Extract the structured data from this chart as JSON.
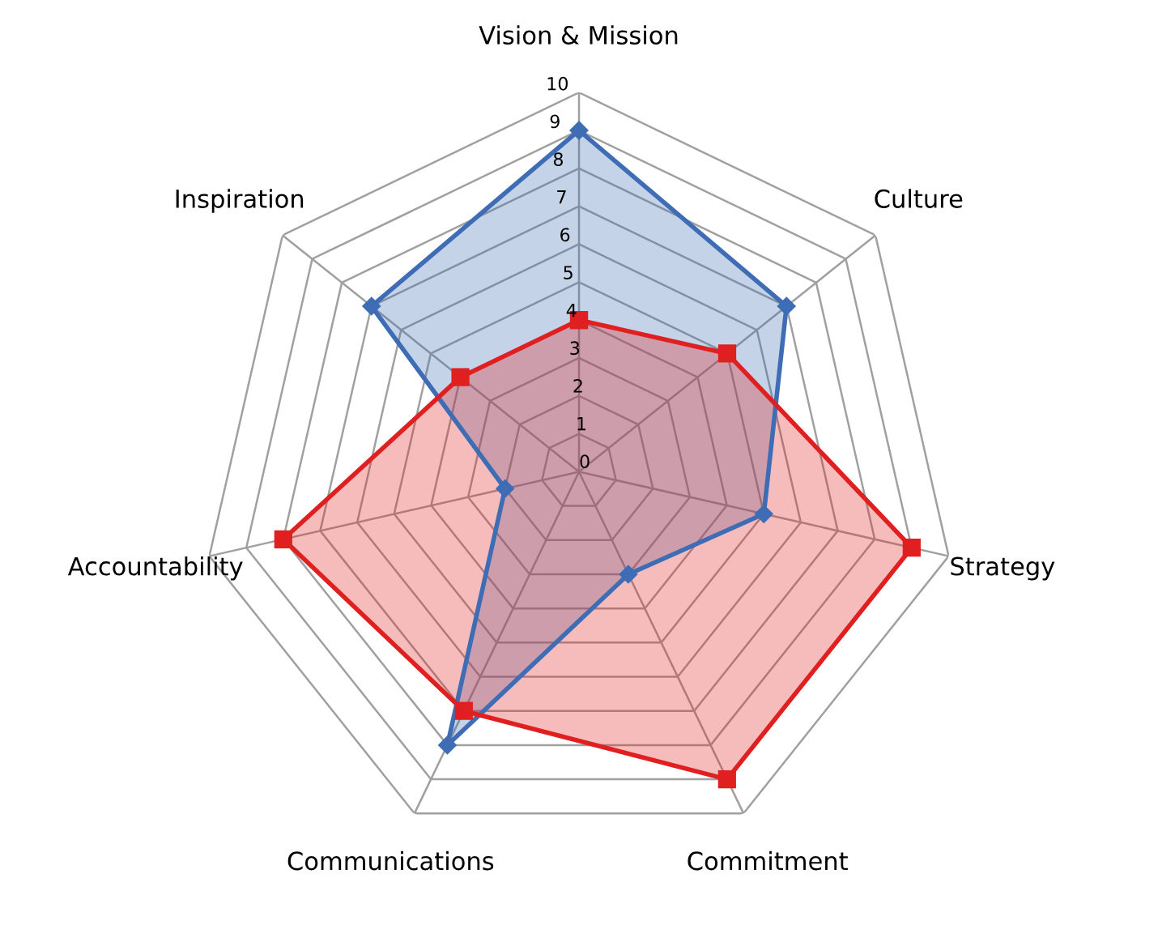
{
  "chart_data": {
    "type": "radar",
    "categories": [
      "Vision & Mission",
      "Culture",
      "Strategy",
      "Commitment",
      "Communications",
      "Accountability",
      "Inspiration"
    ],
    "series": [
      {
        "color": "#3e6db5",
        "marker": "diamond",
        "values": [
          9,
          7,
          5,
          3,
          8,
          2,
          7
        ]
      },
      {
        "color": "#e02020",
        "marker": "square",
        "values": [
          4,
          5,
          9,
          9,
          7,
          8,
          4
        ]
      }
    ],
    "ylim": [
      0,
      10
    ],
    "yticks": [
      0,
      1,
      2,
      3,
      4,
      5,
      6,
      7,
      8,
      9,
      10
    ],
    "grid": true,
    "legend": false
  }
}
